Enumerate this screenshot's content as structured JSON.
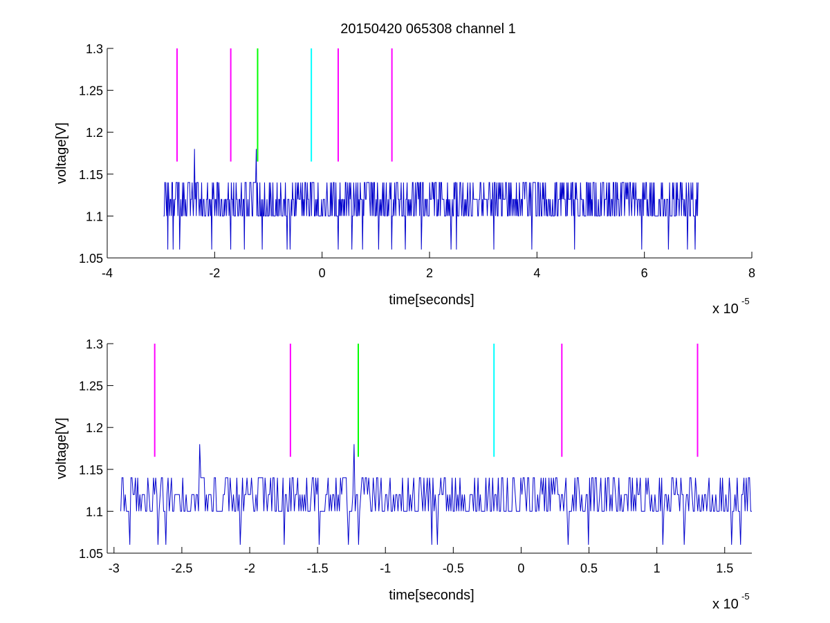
{
  "figure": {
    "title": "20150420 065308 channel 1"
  },
  "chart_data": [
    {
      "type": "line",
      "title": "20150420 065308 channel 1",
      "xlabel": "time[seconds]",
      "ylabel": "voltage[V]",
      "x_multiplier_base": "x 10",
      "x_multiplier_exp": "-5",
      "xlim": [
        -4,
        8
      ],
      "ylim": [
        1.05,
        1.3
      ],
      "xticks": [
        -4,
        -2,
        0,
        2,
        4,
        6,
        8
      ],
      "xtick_labels": [
        "-4",
        "-2",
        "0",
        "2",
        "4",
        "6",
        "8"
      ],
      "yticks": [
        1.05,
        1.1,
        1.15,
        1.2,
        1.25,
        1.3
      ],
      "ytick_labels": [
        "1.05",
        "1.1",
        "1.15",
        "1.2",
        "1.25",
        "1.3"
      ],
      "grid": false,
      "signal": {
        "color": "#0000cc",
        "x_range": [
          -2.95,
          7.0
        ],
        "levels": [
          1.1,
          1.12,
          1.14
        ],
        "spikes": [
          {
            "x": -2.37,
            "y": 1.18
          },
          {
            "x": -1.23,
            "y": 1.18
          }
        ],
        "dips": [
          -2.87,
          -2.77,
          -2.65,
          -2.05,
          -1.7,
          -1.45,
          -1.22,
          -1.12,
          -0.65,
          -0.6,
          0.3,
          0.55,
          0.75,
          1.05,
          1.3,
          1.55,
          1.85,
          2.4,
          2.5,
          3.2,
          3.9,
          4.7,
          5.95,
          6.45,
          6.8,
          6.95
        ]
      },
      "markers": [
        {
          "x": -2.7,
          "color": "#ff00ff"
        },
        {
          "x": -1.7,
          "color": "#ff00ff"
        },
        {
          "x": -1.2,
          "color": "#00ff00"
        },
        {
          "x": -0.2,
          "color": "#00ffff"
        },
        {
          "x": 0.3,
          "color": "#ff00ff"
        },
        {
          "x": 1.3,
          "color": "#ff00ff"
        }
      ],
      "marker_y_range": [
        1.165,
        1.3
      ]
    },
    {
      "type": "line",
      "title": "",
      "xlabel": "time[seconds]",
      "ylabel": "voltage[V]",
      "x_multiplier_base": "x 10",
      "x_multiplier_exp": "-5",
      "xlim": [
        -3.05,
        1.7
      ],
      "ylim": [
        1.05,
        1.3
      ],
      "xticks": [
        -3,
        -2.5,
        -2,
        -1.5,
        -1,
        -0.5,
        0,
        0.5,
        1,
        1.5
      ],
      "xtick_labels": [
        "-3",
        "-2.5",
        "-2",
        "-1.5",
        "-1",
        "-0.5",
        "0",
        "0.5",
        "1",
        "1.5"
      ],
      "yticks": [
        1.05,
        1.1,
        1.15,
        1.2,
        1.25,
        1.3
      ],
      "ytick_labels": [
        "1.05",
        "1.1",
        "1.15",
        "1.2",
        "1.25",
        "1.3"
      ],
      "grid": false,
      "signal": {
        "color": "#0000cc",
        "x_range": [
          -2.95,
          1.7
        ],
        "levels": [
          1.1,
          1.12,
          1.14
        ],
        "spikes": [
          {
            "x": -2.37,
            "y": 1.18
          },
          {
            "x": -1.23,
            "y": 1.18
          }
        ],
        "dips": [
          -2.88,
          -2.68,
          -2.62,
          -2.07,
          -1.75,
          -1.49,
          -1.27,
          -1.2,
          -0.66,
          -0.62,
          0.35,
          0.5,
          1.04,
          1.2,
          1.62,
          1.55
        ]
      },
      "markers": [
        {
          "x": -2.7,
          "color": "#ff00ff"
        },
        {
          "x": -1.7,
          "color": "#ff00ff"
        },
        {
          "x": -1.2,
          "color": "#00ff00"
        },
        {
          "x": -0.2,
          "color": "#00ffff"
        },
        {
          "x": 0.3,
          "color": "#ff00ff"
        },
        {
          "x": 1.3,
          "color": "#ff00ff"
        }
      ],
      "marker_y_range": [
        1.165,
        1.3
      ]
    }
  ]
}
